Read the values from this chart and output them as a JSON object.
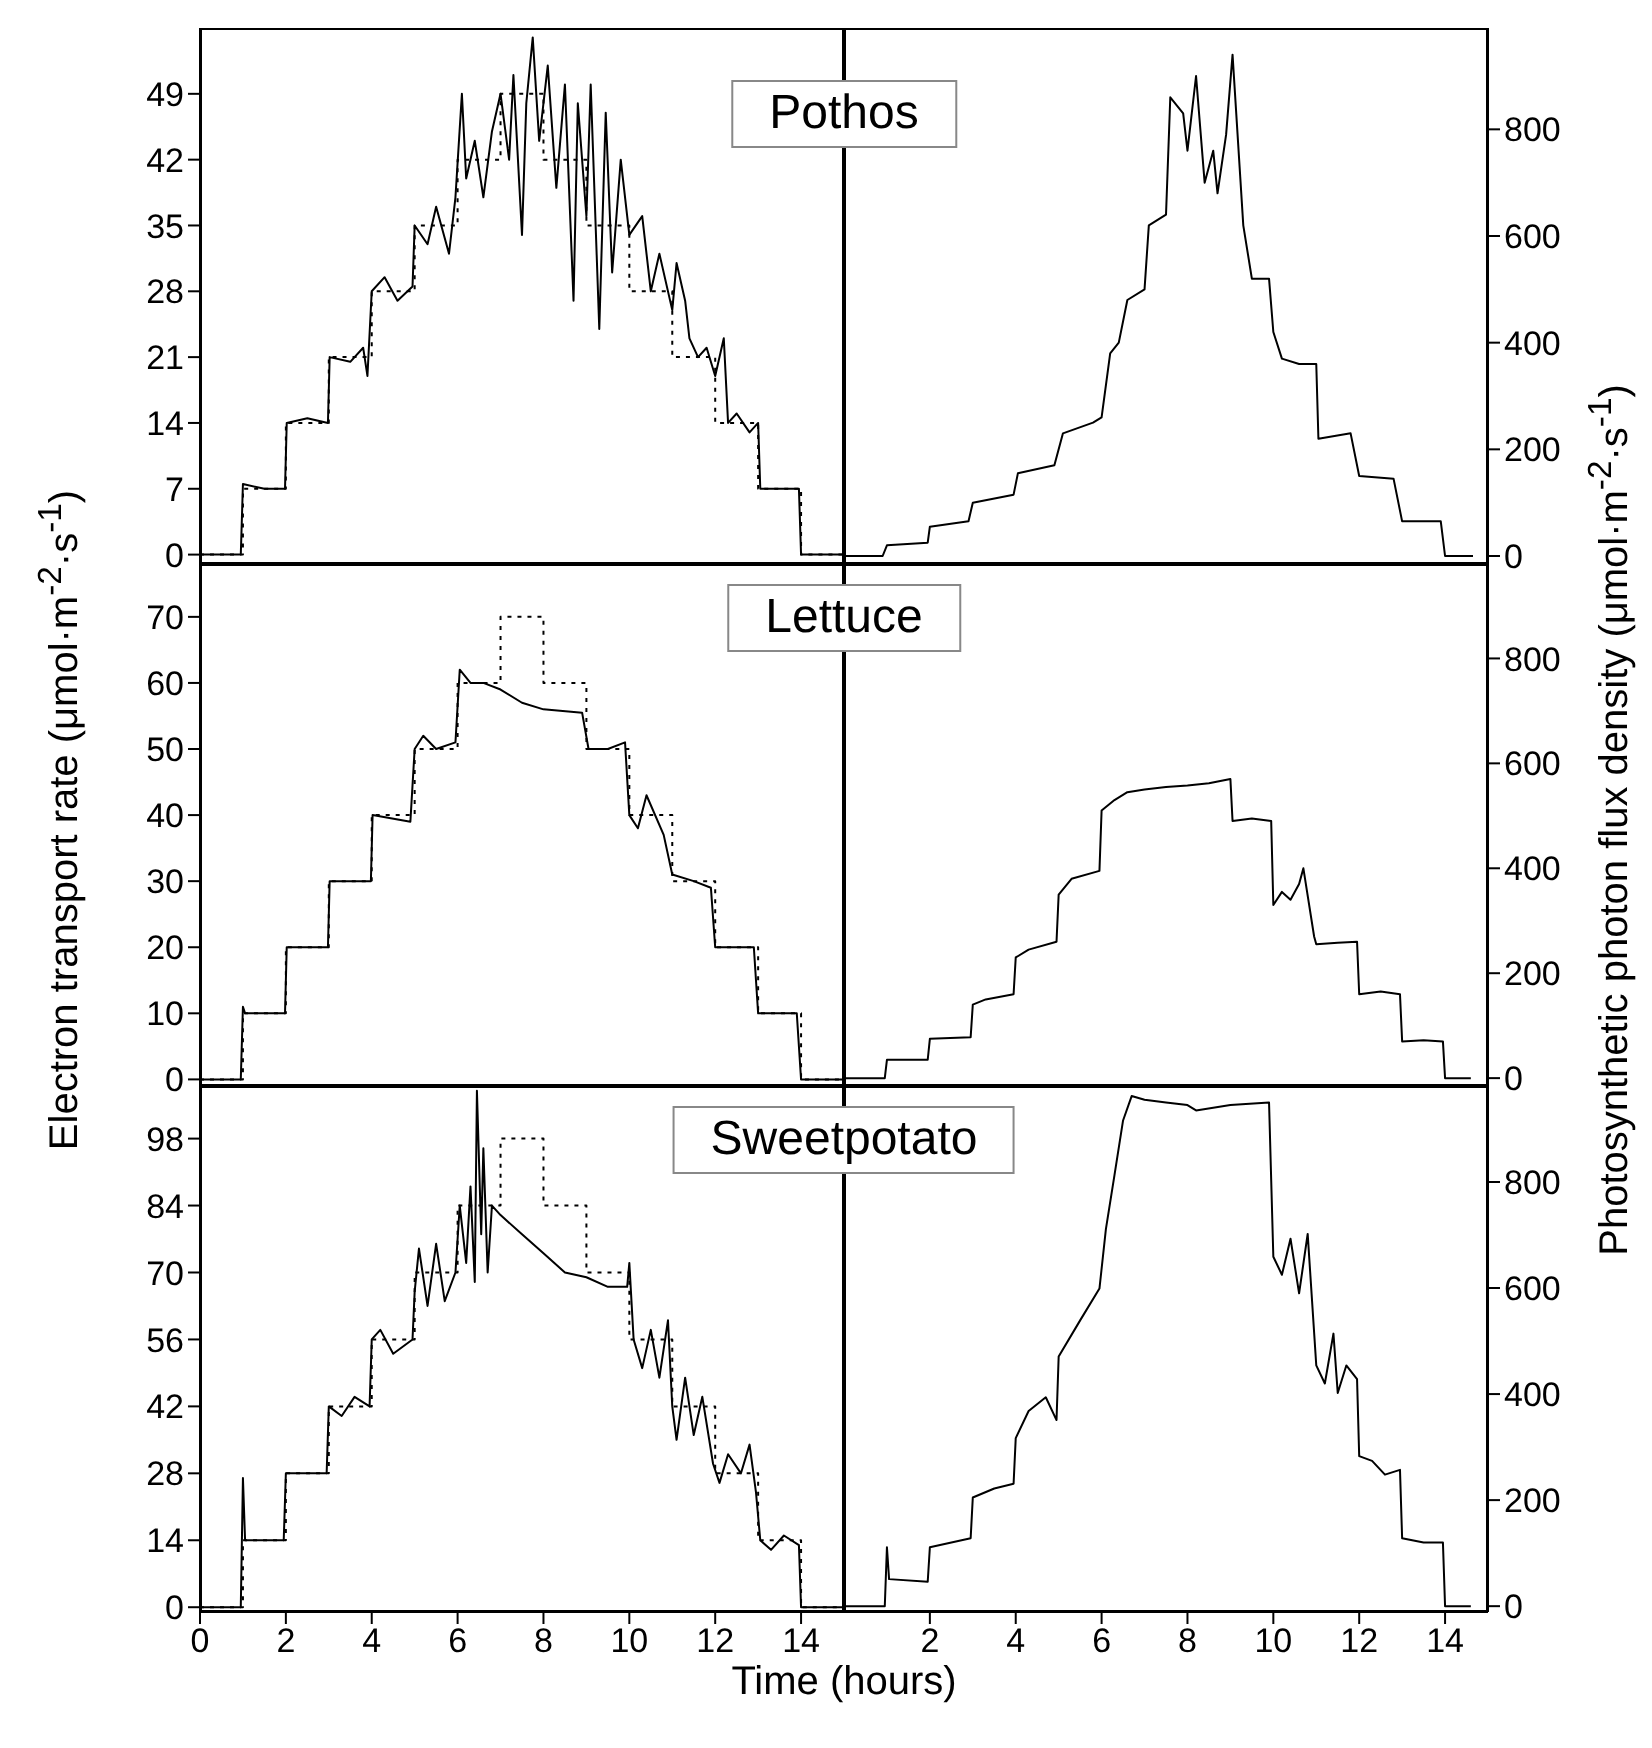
{
  "chart_data": [
    {
      "type": "line",
      "title": "Pothos",
      "xlim": [
        0,
        15
      ],
      "xticks": [
        0,
        2,
        4,
        6,
        8,
        10,
        12,
        14
      ],
      "ylim": [
        -1,
        56
      ],
      "yticks": [
        0,
        7,
        14,
        21,
        28,
        35,
        42,
        49
      ],
      "tick_labels": "y",
      "series": [
        {
          "type": "line",
          "color": "#000000",
          "x": [
            0,
            0.95,
            1,
            1.5,
            1.98,
            2.02,
            2.5,
            2.98,
            3.02,
            3.5,
            3.8,
            3.9,
            4,
            4.3,
            4.6,
            4.95,
            5,
            5.3,
            5.5,
            5.8,
            5.95,
            6.1,
            6.2,
            6.4,
            6.6,
            6.8,
            7,
            7.2,
            7.3,
            7.5,
            7.6,
            7.75,
            7.9,
            8.1,
            8.3,
            8.5,
            8.7,
            8.8,
            9,
            9.1,
            9.3,
            9.45,
            9.6,
            9.8,
            10,
            10.3,
            10.5,
            10.7,
            11,
            11.1,
            11.3,
            11.4,
            11.6,
            11.8,
            12,
            12.2,
            12.3,
            12.5,
            12.8,
            13,
            13.05,
            13.5,
            13.95,
            14,
            15
          ],
          "values": [
            0,
            0,
            7.5,
            7,
            7,
            14,
            14.5,
            14,
            21,
            20.5,
            22,
            19,
            28,
            29.5,
            27,
            28.5,
            35,
            33,
            37,
            32,
            38,
            49,
            40,
            44,
            38,
            45,
            49,
            42,
            51,
            34,
            48,
            55,
            44,
            52,
            39,
            50,
            27,
            48,
            36,
            50,
            24,
            47,
            30,
            42,
            34,
            36,
            28,
            32,
            26,
            31,
            27,
            23,
            21,
            22,
            19,
            23,
            14,
            15,
            13,
            14,
            7,
            7,
            7,
            0,
            0
          ]
        },
        {
          "type": "step",
          "line_style": "dotted",
          "color": "#000000",
          "x": [
            0,
            1,
            2,
            3,
            4,
            5,
            6,
            7,
            8,
            9,
            10,
            11,
            12,
            13,
            14,
            15
          ],
          "values": [
            0,
            7,
            14,
            21,
            28,
            35,
            42,
            49,
            42,
            35,
            28,
            21,
            14,
            7,
            0,
            0
          ]
        }
      ]
    },
    {
      "type": "line",
      "xlim": [
        0,
        15
      ],
      "xticks": [
        2,
        4,
        6,
        8,
        10,
        12,
        14
      ],
      "ylim": [
        -15,
        990
      ],
      "yticks": [
        0,
        200,
        400,
        600,
        800
      ],
      "tick_labels": "y",
      "series": [
        {
          "type": "line",
          "color": "#000000",
          "x": [
            0,
            0.9,
            1,
            1.95,
            2,
            2.9,
            3,
            3.95,
            4.05,
            4.9,
            5.1,
            5.8,
            6,
            6.2,
            6.4,
            6.6,
            7,
            7.1,
            7.5,
            7.6,
            7.9,
            8,
            8.2,
            8.4,
            8.6,
            8.7,
            8.9,
            9.05,
            9.3,
            9.5,
            9.9,
            10,
            10.2,
            10.6,
            11,
            11.05,
            11.8,
            12,
            12.8,
            13,
            13.9,
            14,
            14.65
          ],
          "values": [
            0,
            0,
            20,
            25,
            55,
            65,
            100,
            115,
            155,
            170,
            230,
            250,
            260,
            380,
            400,
            480,
            500,
            620,
            640,
            860,
            830,
            760,
            900,
            700,
            760,
            680,
            790,
            940,
            620,
            520,
            520,
            420,
            370,
            360,
            360,
            220,
            230,
            150,
            145,
            65,
            65,
            0,
            0
          ]
        }
      ]
    },
    {
      "type": "line",
      "title": "Lettuce",
      "ylabel": "Electron transport rate (μmol·m$^{-2}$·s$^{-1}$)",
      "xlim": [
        0,
        15
      ],
      "xticks": [
        0,
        2,
        4,
        6,
        8,
        10,
        12,
        14
      ],
      "ylim": [
        -1,
        78
      ],
      "yticks": [
        0,
        10,
        20,
        30,
        40,
        50,
        60,
        70
      ],
      "tick_labels": "y",
      "series": [
        {
          "type": "line",
          "color": "#000000",
          "x": [
            0,
            0.95,
            1,
            1.05,
            1.98,
            2.02,
            2.98,
            3.02,
            3.98,
            4.02,
            4.9,
            5,
            5.2,
            5.5,
            5.95,
            6.05,
            6.3,
            6.6,
            7,
            7.5,
            8,
            8.9,
            9.05,
            9.5,
            9.9,
            10,
            10.2,
            10.4,
            10.8,
            11,
            11.5,
            11.9,
            12,
            12.9,
            13,
            13.9,
            14,
            15
          ],
          "values": [
            0,
            0,
            11,
            10,
            10,
            20,
            20,
            30,
            30,
            40,
            39,
            50,
            52,
            50,
            51,
            62,
            60,
            60,
            59,
            57,
            56,
            55.5,
            50,
            50,
            51,
            40,
            38,
            43,
            37,
            31,
            30,
            29,
            20,
            20,
            10,
            10,
            0,
            0
          ]
        },
        {
          "type": "step",
          "line_style": "dotted",
          "color": "#000000",
          "x": [
            0,
            1,
            2,
            3,
            4,
            5,
            6,
            7,
            8,
            9,
            10,
            11,
            12,
            13,
            14,
            15
          ],
          "values": [
            0,
            10,
            20,
            30,
            40,
            50,
            60,
            70,
            60,
            50,
            40,
            30,
            20,
            10,
            0,
            0
          ]
        }
      ]
    },
    {
      "type": "line",
      "ylabel": "Photosynthetic photon flux density (μmol·m$^{-2}$·s$^{-1}$)",
      "xlim": [
        0,
        15
      ],
      "xticks": [
        2,
        4,
        6,
        8,
        10,
        12,
        14
      ],
      "ylim": [
        -15,
        980
      ],
      "yticks": [
        0,
        200,
        400,
        600,
        800
      ],
      "tick_labels": "y",
      "series": [
        {
          "type": "line",
          "color": "#000000",
          "x": [
            0,
            0.95,
            1,
            1.95,
            2,
            2.95,
            3,
            3.3,
            3.95,
            4,
            4.3,
            4.95,
            5,
            5.3,
            5.95,
            6,
            6.3,
            6.6,
            7,
            7.5,
            8,
            8.5,
            9,
            9.05,
            9.5,
            9.95,
            10,
            10.2,
            10.4,
            10.6,
            10.7,
            10.95,
            11,
            11.5,
            11.95,
            12,
            12.5,
            12.95,
            13,
            13.5,
            13.95,
            14,
            14.6
          ],
          "values": [
            0,
            0,
            35,
            35,
            75,
            78,
            140,
            150,
            160,
            230,
            245,
            260,
            350,
            380,
            395,
            510,
            530,
            545,
            550,
            555,
            558,
            562,
            570,
            490,
            495,
            490,
            330,
            355,
            340,
            370,
            400,
            270,
            255,
            258,
            260,
            160,
            165,
            160,
            70,
            72,
            70,
            0,
            0
          ]
        }
      ]
    },
    {
      "type": "line",
      "title": "Sweetpotato",
      "xlabel": "Time (hours)",
      "xlim": [
        0,
        15
      ],
      "xticks": [
        0,
        2,
        4,
        6,
        8,
        10,
        12,
        14
      ],
      "ylim": [
        -1,
        109
      ],
      "yticks": [
        0,
        14,
        28,
        42,
        56,
        70,
        84,
        98
      ],
      "series": [
        {
          "type": "line",
          "color": "#000000",
          "x": [
            0,
            0.95,
            1,
            1.05,
            1.5,
            1.95,
            2,
            2.95,
            3,
            3.3,
            3.6,
            3.95,
            4,
            4.2,
            4.5,
            4.95,
            5,
            5.1,
            5.3,
            5.5,
            5.7,
            5.95,
            6.05,
            6.2,
            6.3,
            6.4,
            6.45,
            6.55,
            6.6,
            6.7,
            6.8,
            7,
            7.5,
            8,
            8.5,
            9,
            9.5,
            9.95,
            10,
            10.1,
            10.3,
            10.5,
            10.7,
            10.9,
            11,
            11.1,
            11.3,
            11.5,
            11.7,
            11.95,
            12.1,
            12.3,
            12.6,
            12.8,
            12.95,
            13.05,
            13.3,
            13.6,
            13.95,
            14,
            15
          ],
          "values": [
            0,
            0,
            27,
            14,
            14,
            14,
            28,
            28,
            42,
            40,
            44,
            42,
            56,
            58,
            53,
            56,
            66,
            75,
            63,
            76,
            64,
            70,
            84,
            72,
            88,
            68,
            108,
            78,
            96,
            70,
            84,
            82,
            78,
            74,
            70,
            69,
            67,
            67,
            72,
            56,
            50,
            58,
            48,
            60,
            42,
            35,
            48,
            36,
            44,
            30,
            26,
            32,
            28,
            34,
            24,
            14,
            12,
            15,
            13,
            0,
            0
          ]
        },
        {
          "type": "step",
          "line_style": "dotted",
          "color": "#000000",
          "x": [
            0,
            1,
            2,
            3,
            4,
            5,
            6,
            7,
            8,
            9,
            10,
            11,
            12,
            13,
            14,
            15
          ],
          "values": [
            0,
            14,
            28,
            42,
            56,
            70,
            84,
            98,
            84,
            70,
            56,
            42,
            28,
            14,
            0,
            0
          ]
        }
      ]
    },
    {
      "type": "line",
      "xlim": [
        0,
        15
      ],
      "xticks": [
        2,
        4,
        6,
        8,
        10,
        12,
        14
      ],
      "ylim": [
        -11,
        981
      ],
      "yticks": [
        0,
        200,
        400,
        600,
        800
      ],
      "series": [
        {
          "type": "line",
          "color": "#000000",
          "x": [
            0,
            0.95,
            1,
            1.05,
            1.95,
            2,
            2.95,
            3,
            3.5,
            3.95,
            4,
            4.3,
            4.7,
            4.95,
            5,
            5.5,
            5.95,
            6.1,
            6.3,
            6.5,
            6.7,
            7,
            7.5,
            8,
            8.2,
            9,
            9.9,
            10,
            10.2,
            10.4,
            10.6,
            10.8,
            11,
            11.2,
            11.4,
            11.5,
            11.7,
            11.95,
            12,
            12.3,
            12.6,
            12.95,
            13,
            13.5,
            13.95,
            14,
            14.6
          ],
          "values": [
            0,
            0,
            111,
            51,
            46,
            111,
            128,
            205,
            222,
            231,
            317,
            368,
            394,
            351,
            471,
            539,
            599,
            711,
            813,
            916,
            962,
            955,
            950,
            945,
            935,
            945,
            950,
            659,
            625,
            693,
            590,
            702,
            454,
            420,
            514,
            402,
            454,
            428,
            283,
            274,
            248,
            257,
            128,
            120,
            120,
            0,
            0
          ]
        }
      ]
    }
  ]
}
